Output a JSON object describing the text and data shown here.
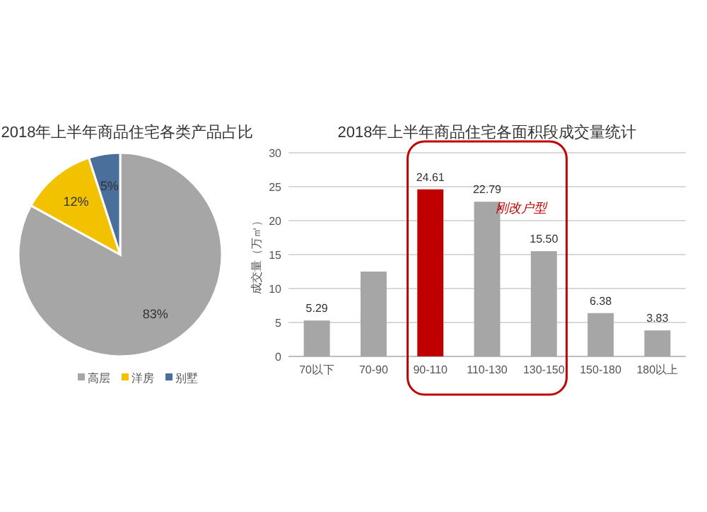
{
  "chart_data": [
    {
      "type": "pie",
      "title": "2018年上半年商品住宅各类产品占比",
      "categories": [
        "高层",
        "洋房",
        "别墅"
      ],
      "values": [
        83,
        12,
        5
      ],
      "colors": [
        "#a6a6a6",
        "#f2c200",
        "#4a6f9b"
      ],
      "value_labels": [
        "83%",
        "12%",
        "5%"
      ],
      "legend": "bottom"
    },
    {
      "type": "bar",
      "title": "2018年上半年商品住宅各面积段成交量统计",
      "ylabel": "成交量（万㎡）",
      "categories": [
        "70以下",
        "70-90",
        "90-110",
        "110-130",
        "130-150",
        "150-180",
        "180以上"
      ],
      "values": [
        5.29,
        12.5,
        24.61,
        22.79,
        15.5,
        6.38,
        3.83
      ],
      "colors": [
        "#a6a6a6",
        "#a6a6a6",
        "#c00000",
        "#a6a6a6",
        "#a6a6a6",
        "#a6a6a6",
        "#a6a6a6"
      ],
      "value_labels": [
        "5.29",
        null,
        "24.61",
        "22.79",
        "15.50",
        "6.38",
        "3.83"
      ],
      "ylim": [
        0,
        30
      ],
      "yticks": [
        0,
        5,
        10,
        15,
        20,
        25,
        30
      ],
      "grid": "y",
      "annotations": [
        "刚改户型"
      ]
    }
  ]
}
